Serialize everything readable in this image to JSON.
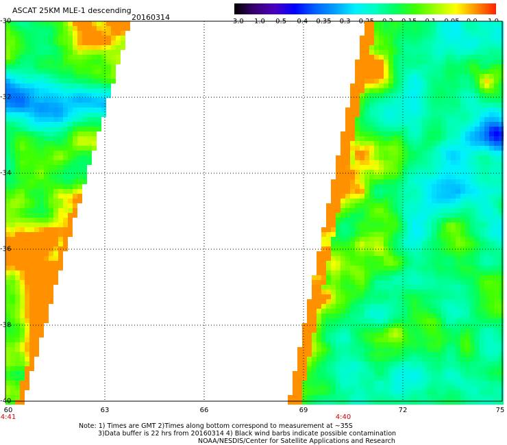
{
  "title": "ASCAT 25KM MLE-1 descending",
  "date": "20160314",
  "colorbar": {
    "labels": [
      "-3.0",
      "-1.0",
      "-0.5",
      "-0.4",
      "-0.35",
      "-0.3",
      "-0.25",
      "-0.2",
      "-0.15",
      "-0.1",
      "-0.05",
      "0.0",
      "1.0"
    ],
    "colors": [
      "#000000",
      "#3a0070",
      "#4a00c0",
      "#0000ff",
      "#0060ff",
      "#00a0ff",
      "#00f0ff",
      "#00ffc0",
      "#00ff60",
      "#40ff00",
      "#a0ff00",
      "#ffff00",
      "#ff9000",
      "#ff2000"
    ]
  },
  "map": {
    "lat_labels": [
      "-30",
      "-32",
      "-34",
      "-36",
      "-38",
      "-40"
    ],
    "lon_labels": [
      "60",
      "63",
      "66",
      "69",
      "72",
      "75"
    ],
    "lon_range": [
      60,
      75
    ],
    "lat_range": [
      -30,
      -40
    ],
    "grid": true,
    "times": [
      {
        "label": "4:41",
        "lon": 60
      },
      {
        "label": "4:40",
        "lon": 70.2
      }
    ]
  },
  "notes": {
    "line1": "Note: 1) Times are GMT 2)Times along bottom correspond to measurement at ~35S",
    "line2": "3)Data buffer is 22 hrs from 20160314 4) Black wind barbs indicate possible contamination",
    "line3": "NOAA/NESDIS/Center for Satellite Applications and Research"
  }
}
